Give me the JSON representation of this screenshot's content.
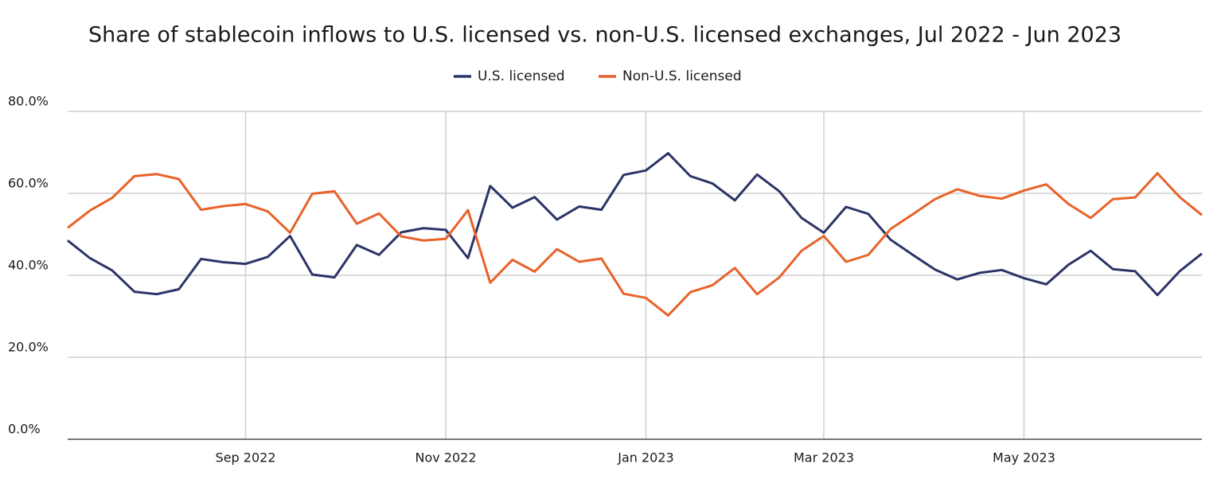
{
  "chart_data": {
    "type": "line",
    "title": "Share of stablecoin inflows to U.S. licensed vs. non-U.S. licensed exchanges, Jul 2022 - Jun 2023",
    "categories": [
      null,
      null,
      null,
      null,
      null,
      null,
      null,
      null,
      "Sep 2022",
      null,
      null,
      null,
      null,
      null,
      null,
      null,
      null,
      "Nov 2022",
      null,
      null,
      null,
      null,
      null,
      null,
      null,
      null,
      "Jan 2023",
      null,
      null,
      null,
      null,
      null,
      null,
      null,
      "Mar 2023",
      null,
      null,
      null,
      null,
      null,
      null,
      null,
      null,
      "May 2023",
      null,
      null,
      null,
      null,
      null,
      null,
      null,
      null
    ],
    "series": [
      {
        "name": "U.S. licensed",
        "color": "#2b3467",
        "values": [
          48.5,
          44.2,
          41.2,
          36.0,
          35.4,
          36.6,
          44.0,
          43.2,
          42.8,
          44.5,
          49.6,
          40.2,
          39.5,
          47.4,
          45.0,
          50.5,
          51.5,
          51.1,
          44.2,
          61.8,
          56.5,
          59.1,
          53.6,
          56.8,
          56.0,
          64.5,
          65.6,
          69.8,
          64.2,
          62.4,
          58.3,
          64.6,
          60.5,
          54.0,
          50.4,
          56.7,
          55.0,
          48.7,
          45.0,
          41.4,
          39.0,
          40.6,
          41.3,
          39.3,
          37.8,
          42.6,
          46.0,
          41.5,
          41.0,
          35.2,
          41.0,
          45.3
        ]
      },
      {
        "name": "Non-U.S. licensed",
        "color": "#e8622a",
        "values": [
          51.6,
          55.8,
          58.9,
          64.2,
          64.7,
          63.5,
          56.0,
          56.9,
          57.4,
          55.6,
          50.4,
          59.9,
          60.5,
          52.6,
          55.1,
          49.5,
          48.5,
          48.9,
          55.9,
          38.2,
          43.8,
          40.9,
          46.4,
          43.3,
          44.1,
          35.5,
          34.5,
          30.2,
          35.9,
          37.6,
          41.8,
          35.4,
          39.5,
          46.0,
          49.6,
          43.3,
          45.0,
          51.3,
          54.9,
          58.6,
          61.0,
          59.4,
          58.7,
          60.7,
          62.2,
          57.4,
          54.0,
          58.6,
          59.0,
          64.9,
          59.1,
          54.7
        ]
      }
    ],
    "ylim": [
      0,
      80
    ],
    "yticks": [
      {
        "value": 0,
        "label": "0.0%"
      },
      {
        "value": 20,
        "label": "20.0%"
      },
      {
        "value": 40,
        "label": "40.0%"
      },
      {
        "value": 60,
        "label": "60.0%"
      },
      {
        "value": 80,
        "label": "80.0%"
      }
    ],
    "grid": true,
    "legend": "top"
  }
}
